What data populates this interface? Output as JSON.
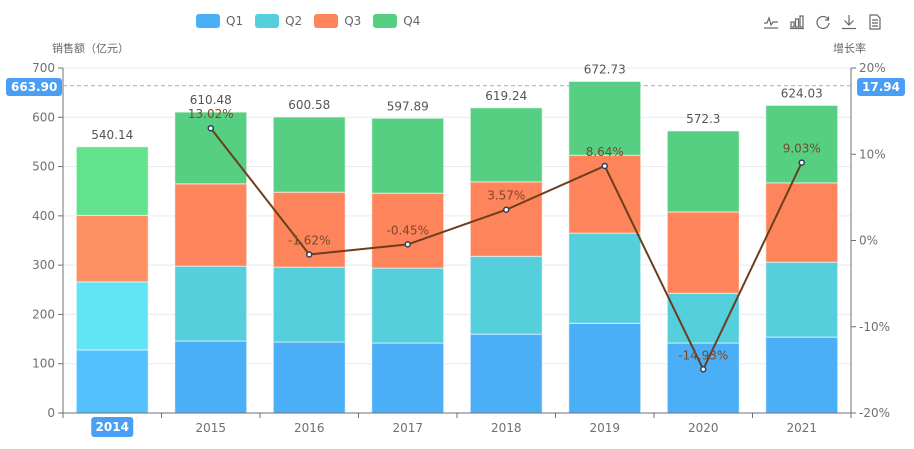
{
  "chart_data": {
    "type": "bar",
    "stacked": true,
    "categories": [
      "2014",
      "2015",
      "2016",
      "2017",
      "2018",
      "2019",
      "2020",
      "2021"
    ],
    "series": [
      {
        "name": "Q1",
        "color": "#4aaff6",
        "values": [
          128,
          146,
          144,
          142,
          160,
          182,
          142,
          154
        ]
      },
      {
        "name": "Q2",
        "color": "#56cfdc",
        "values": [
          138,
          152,
          152,
          152,
          158,
          183,
          101,
          152
        ]
      },
      {
        "name": "Q3",
        "color": "#fd845b",
        "values": [
          135,
          167,
          152,
          152,
          151,
          158,
          165,
          161
        ]
      },
      {
        "name": "Q4",
        "color": "#56cf82",
        "values": [
          139.14,
          145.48,
          152.58,
          151.89,
          150.24,
          149.73,
          164.3,
          157.03
        ]
      }
    ],
    "highlight_colors": {
      "Q1": "#52c1fc",
      "Q2": "#61e4f3",
      "Q3": "#fe9063",
      "Q4": "#60e38c"
    },
    "totals": [
      540.14,
      610.48,
      600.58,
      597.89,
      619.24,
      672.73,
      572.3,
      624.03
    ],
    "total_labels": [
      "540.14",
      "610.48",
      "600.58",
      "597.89",
      "619.24",
      "672.73",
      "572.3",
      "624.03"
    ],
    "line_series": {
      "name": "增长率",
      "color": "#6b3e1c",
      "values": [
        null,
        13.02,
        -1.62,
        -0.45,
        3.57,
        8.64,
        -14.93,
        9.03
      ],
      "labels": [
        "",
        "13.02%",
        "-1.62%",
        "-0.45%",
        "3.57%",
        "8.64%",
        "-14.93%",
        "9.03%"
      ]
    },
    "y_left": {
      "name": "销售额（亿元）",
      "min": 0,
      "max": 700,
      "ticks": [
        0,
        100,
        200,
        300,
        400,
        500,
        600,
        700
      ],
      "tick_labels": [
        "0",
        "100",
        "200",
        "300",
        "400",
        "500",
        "600",
        "700"
      ]
    },
    "y_right": {
      "name": "增长率",
      "min": -20,
      "max": 20,
      "ticks": [
        -20,
        -10,
        0,
        10,
        20
      ],
      "tick_labels": [
        "-20%",
        "-10%",
        "0%",
        "10%",
        "20%"
      ]
    },
    "axis_pointer": {
      "category": "2014",
      "y_left_value": 663.9,
      "y_left_label": "663.90",
      "y_right_label": "17.94"
    },
    "legend_position": "top-center",
    "grid": true,
    "title": ""
  },
  "legend": [
    {
      "label": "Q1",
      "color": "#4aaff6"
    },
    {
      "label": "Q2",
      "color": "#56cfdc"
    },
    {
      "label": "Q3",
      "color": "#fd845b"
    },
    {
      "label": "Q4",
      "color": "#56cf82"
    }
  ],
  "toolbox": [
    {
      "name": "line-chart-icon"
    },
    {
      "name": "bar-chart-icon"
    },
    {
      "name": "restore-icon"
    },
    {
      "name": "download-icon"
    },
    {
      "name": "data-view-icon"
    }
  ]
}
